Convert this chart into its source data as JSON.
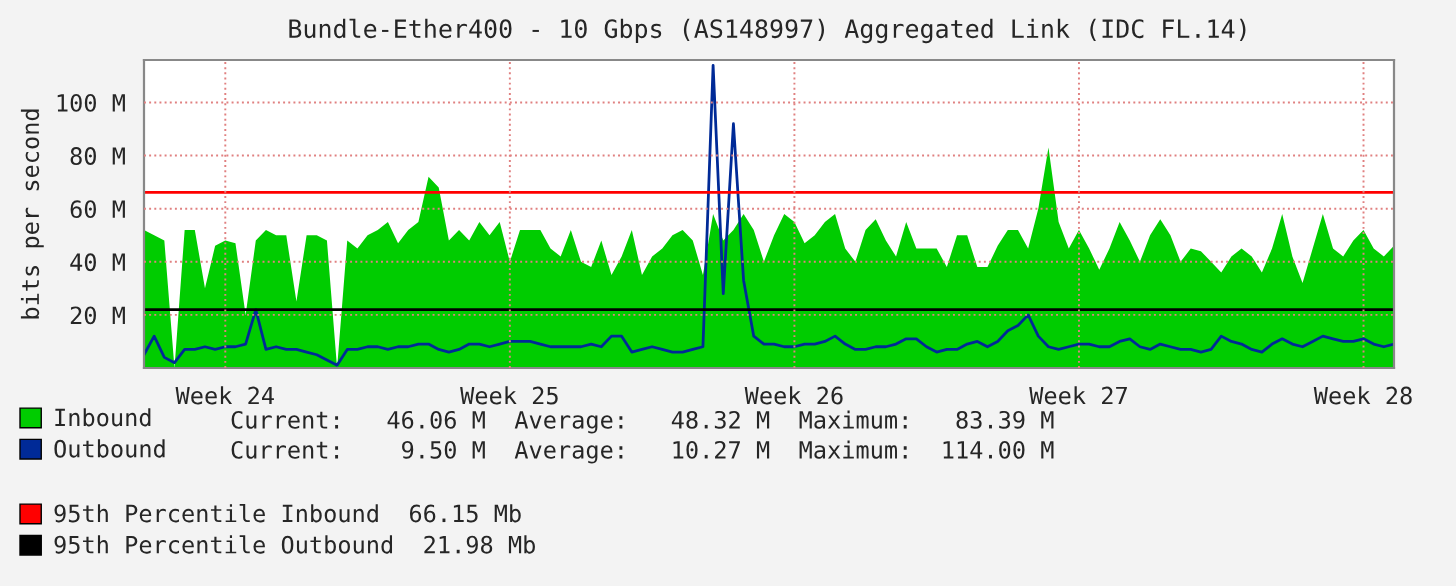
{
  "chart_data": {
    "type": "area",
    "title": "Bundle-Ether400 - 10 Gbps (AS148997) Aggregated Link (IDC FL.14)",
    "ylabel": "bits per second",
    "categories": [
      null,
      null,
      null,
      null,
      null,
      null,
      null,
      null,
      "Week 24",
      null,
      null,
      null,
      null,
      null,
      null,
      null,
      null,
      null,
      null,
      null,
      null,
      null,
      null,
      null,
      null,
      null,
      null,
      null,
      null,
      null,
      null,
      null,
      null,
      null,
      null,
      null,
      "Week 25",
      null,
      null,
      null,
      null,
      null,
      null,
      null,
      null,
      null,
      null,
      null,
      null,
      null,
      null,
      null,
      null,
      null,
      null,
      null,
      null,
      null,
      null,
      null,
      null,
      null,
      null,
      null,
      "Week 26",
      null,
      null,
      null,
      null,
      null,
      null,
      null,
      null,
      null,
      null,
      null,
      null,
      null,
      null,
      null,
      null,
      null,
      null,
      null,
      null,
      null,
      null,
      null,
      null,
      null,
      null,
      null,
      "Week 27",
      null,
      null,
      null,
      null,
      null,
      null,
      null,
      null,
      null,
      null,
      null,
      null,
      null,
      null,
      null,
      null,
      null,
      null,
      null,
      null,
      null,
      null,
      null,
      null,
      null,
      null,
      null,
      "Week 28",
      null,
      null,
      null
    ],
    "ylim": [
      0,
      116
    ],
    "yticks": [
      {
        "value": 20,
        "label": "20 M"
      },
      {
        "value": 40,
        "label": "40 M"
      },
      {
        "value": 60,
        "label": "60 M"
      },
      {
        "value": 80,
        "label": "80 M"
      },
      {
        "value": 100,
        "label": "100 M"
      }
    ],
    "grid": true,
    "legend": "bottom",
    "series": [
      {
        "name": "Inbound",
        "color": "#00cc00",
        "values": [
          52,
          50,
          48,
          0,
          52,
          52,
          30,
          46,
          48,
          47,
          20,
          48,
          52,
          50,
          50,
          25,
          50,
          50,
          48,
          0,
          48,
          45,
          50,
          52,
          55,
          47,
          52,
          55,
          72,
          68,
          48,
          52,
          48,
          55,
          50,
          55,
          40,
          52,
          52,
          52,
          45,
          42,
          52,
          40,
          38,
          48,
          35,
          42,
          52,
          35,
          42,
          45,
          50,
          52,
          48,
          35,
          58,
          48,
          52,
          58,
          52,
          40,
          50,
          58,
          55,
          47,
          50,
          55,
          58,
          45,
          40,
          52,
          56,
          48,
          42,
          55,
          45,
          45,
          45,
          38,
          50,
          50,
          38,
          38,
          46,
          52,
          52,
          45,
          60,
          83,
          55,
          45,
          52,
          45,
          37,
          45,
          55,
          48,
          40,
          50,
          56,
          50,
          40,
          45,
          44,
          40,
          36,
          42,
          45,
          42,
          36,
          45,
          58,
          42,
          32,
          45,
          58,
          45,
          42,
          48,
          52,
          45,
          42,
          46
        ]
      },
      {
        "name": "Outbound",
        "type": "line",
        "color": "#002a97",
        "values": [
          5,
          12,
          4,
          2,
          7,
          7,
          8,
          7,
          8,
          8,
          9,
          22,
          7,
          8,
          7,
          7,
          6,
          5,
          3,
          1,
          7,
          7,
          8,
          8,
          7,
          8,
          8,
          9,
          9,
          7,
          6,
          7,
          9,
          9,
          8,
          9,
          10,
          10,
          10,
          9,
          8,
          8,
          8,
          8,
          9,
          8,
          12,
          12,
          6,
          7,
          8,
          7,
          6,
          6,
          7,
          8,
          114,
          28,
          92,
          33,
          12,
          9,
          9,
          8,
          8,
          9,
          9,
          10,
          12,
          9,
          7,
          7,
          8,
          8,
          9,
          11,
          11,
          8,
          6,
          7,
          7,
          9,
          10,
          8,
          10,
          14,
          16,
          20,
          12,
          8,
          7,
          8,
          9,
          9,
          8,
          8,
          10,
          11,
          8,
          7,
          9,
          8,
          7,
          7,
          6,
          7,
          12,
          10,
          9,
          7,
          6,
          9,
          11,
          9,
          8,
          10,
          12,
          11,
          10,
          10,
          11,
          9,
          8,
          9
        ]
      }
    ],
    "ref_lines": [
      {
        "axis": "y",
        "value": 66.15,
        "label": "95th Percentile Inbound  66.15 Mb",
        "color": "#ff0000"
      },
      {
        "axis": "y",
        "value": 21.98,
        "label": "95th Percentile Outbound  21.98 Mb",
        "color": "#000000"
      }
    ],
    "annotations": [
      "Current:   46.06 M  Average:   48.32 M  Maximum:   83.39 M",
      "Current:    9.50 M  Average:   10.27 M  Maximum:  114.00 M"
    ]
  }
}
